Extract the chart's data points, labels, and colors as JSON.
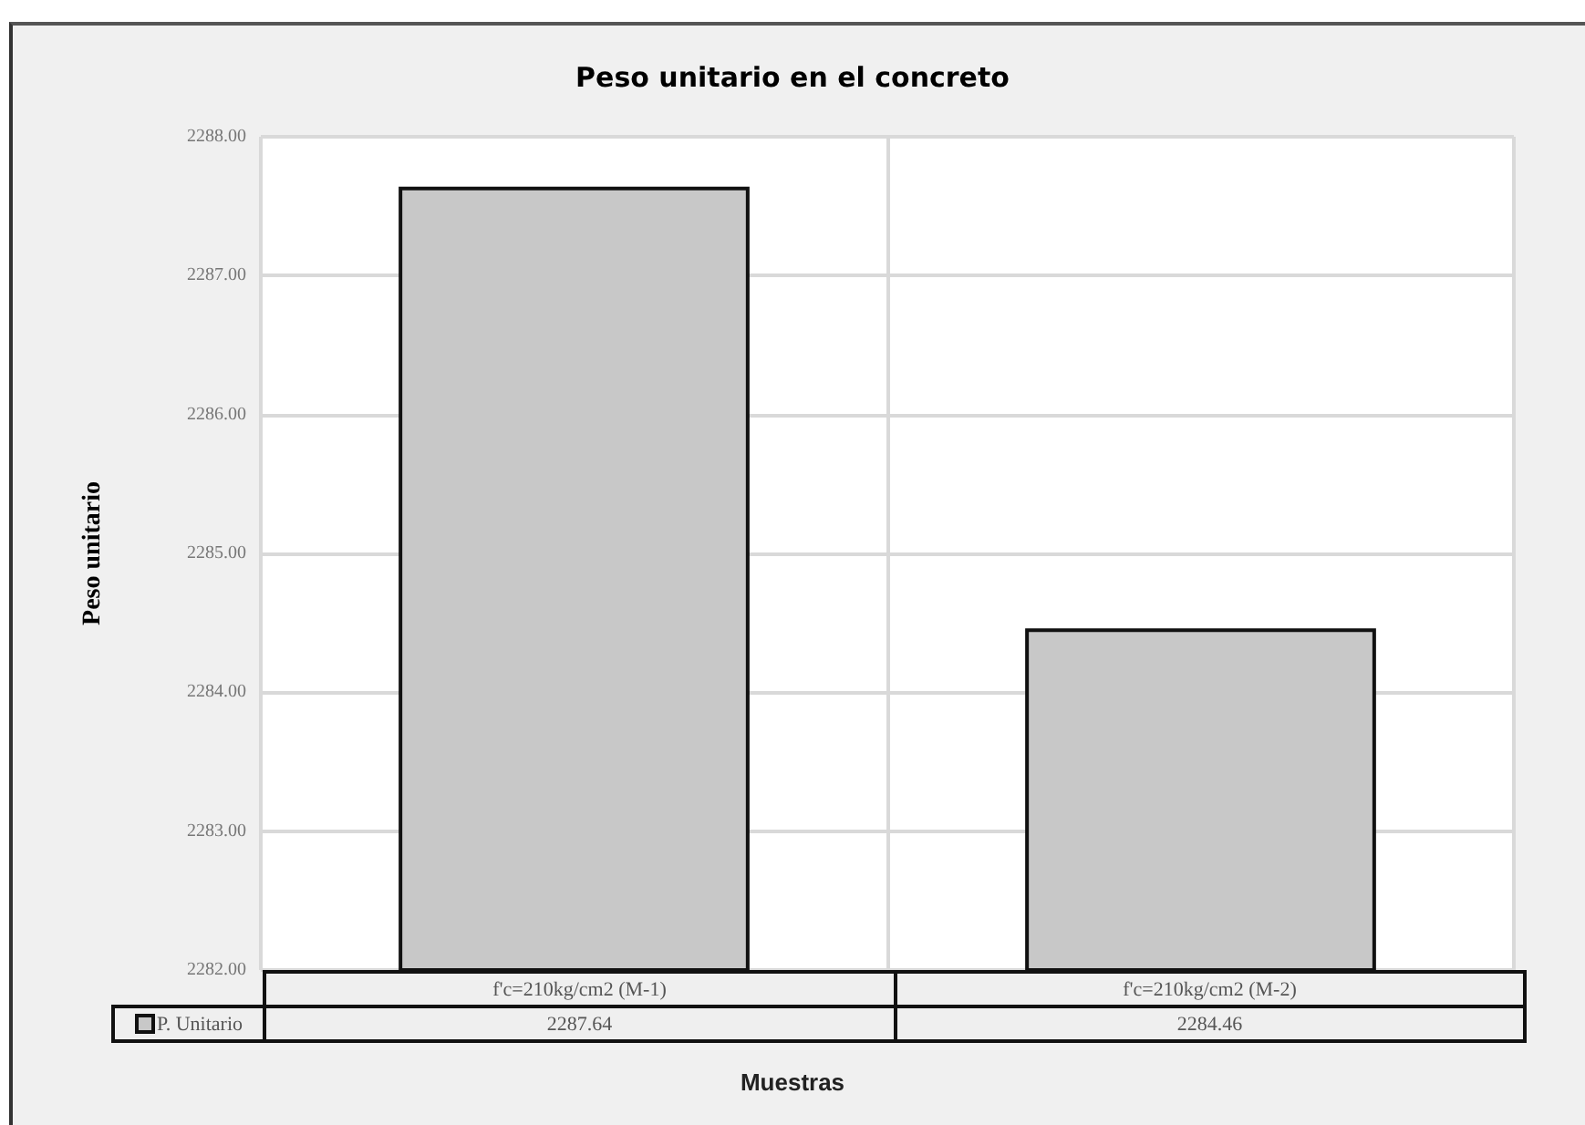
{
  "chart_data": {
    "type": "bar",
    "title": "Peso unitario en el concreto",
    "xlabel": "Muestras",
    "ylabel": "Peso unitario",
    "categories": [
      "f'c=210kg/cm2 (M-1)",
      "f'c=210kg/cm2 (M-2)"
    ],
    "series": [
      {
        "name": "P. Unitario",
        "color": "#c8c8c8",
        "values": [
          2287.64,
          2284.46
        ]
      }
    ],
    "ylim": [
      2282,
      2288
    ],
    "yticks": [
      {
        "value": 2282,
        "label": "2282.00"
      },
      {
        "value": 2283,
        "label": "2283.00"
      },
      {
        "value": 2284,
        "label": "2284.00"
      },
      {
        "value": 2285,
        "label": "2285.00"
      },
      {
        "value": 2286,
        "label": "2286.00"
      },
      {
        "value": 2287,
        "label": "2287.00"
      },
      {
        "value": 2288,
        "label": "2288.00"
      }
    ],
    "grid": true,
    "data_labels": true,
    "legend": "bottom left"
  }
}
